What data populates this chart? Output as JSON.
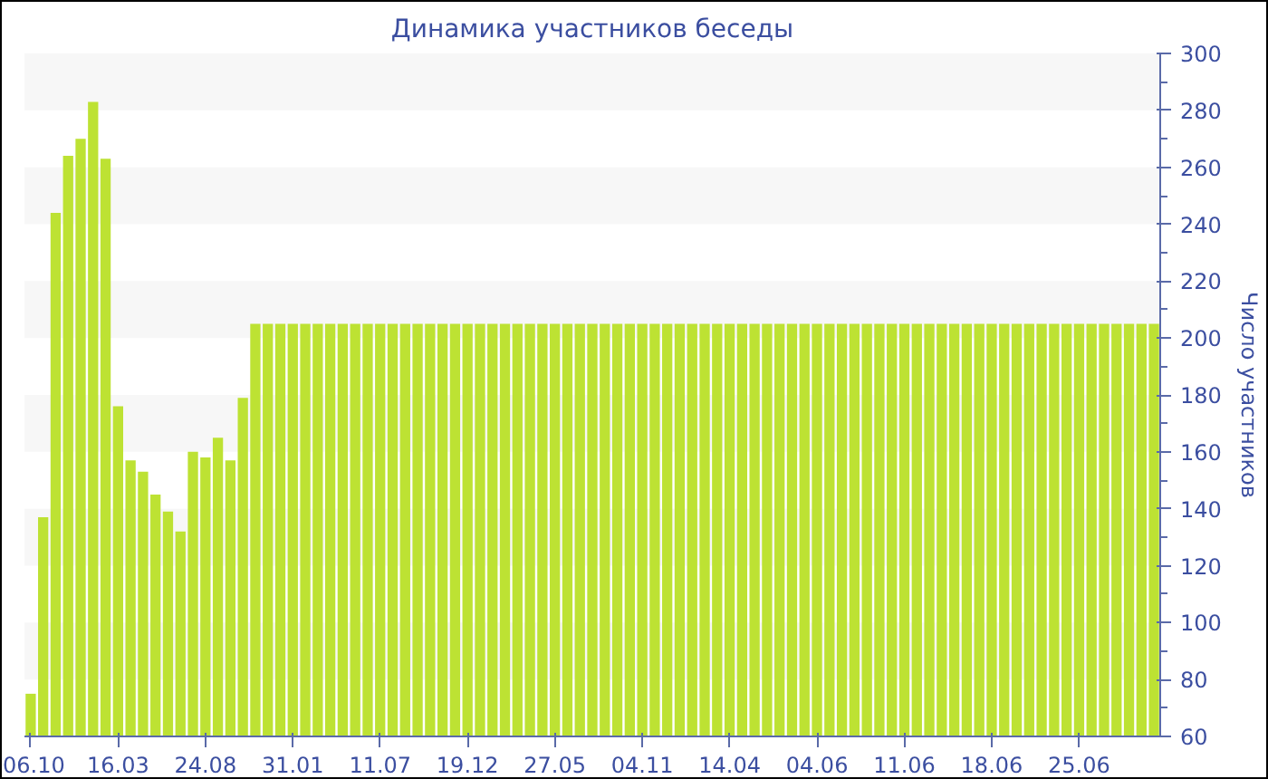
{
  "chart_data": {
    "type": "bar",
    "title": "Динамика участников беседы",
    "ylabel": "Число участников",
    "categories": [
      "06.10",
      null,
      null,
      null,
      null,
      null,
      null,
      "16.03",
      null,
      null,
      null,
      null,
      null,
      null,
      "24.08",
      null,
      null,
      null,
      null,
      null,
      null,
      "31.01",
      null,
      null,
      null,
      null,
      null,
      null,
      "11.07",
      null,
      null,
      null,
      null,
      null,
      null,
      "19.12",
      null,
      null,
      null,
      null,
      null,
      null,
      "27.05",
      null,
      null,
      null,
      null,
      null,
      null,
      "04.11",
      null,
      null,
      null,
      null,
      null,
      null,
      "14.04",
      null,
      null,
      null,
      null,
      null,
      null,
      "04.06",
      null,
      null,
      null,
      null,
      null,
      null,
      "11.06",
      null,
      null,
      null,
      null,
      null,
      null,
      "18.06",
      null,
      null,
      null,
      null,
      null,
      null,
      "25.06",
      null,
      null,
      null,
      null,
      null,
      null
    ],
    "values": [
      75,
      137,
      244,
      264,
      270,
      283,
      263,
      176,
      157,
      153,
      145,
      139,
      132,
      160,
      158,
      165,
      157,
      179,
      205,
      205,
      205,
      205,
      205,
      205,
      205,
      205,
      205,
      205,
      205,
      205,
      205,
      205,
      205,
      205,
      205,
      205,
      205,
      205,
      205,
      205,
      205,
      205,
      205,
      205,
      205,
      205,
      205,
      205,
      205,
      205,
      205,
      205,
      205,
      205,
      205,
      205,
      205,
      205,
      205,
      205,
      205,
      205,
      205,
      205,
      205,
      205,
      205,
      205,
      205,
      205,
      205,
      205,
      205,
      205,
      205,
      205,
      205,
      205,
      205,
      205,
      205,
      205,
      205,
      205,
      205,
      205,
      205,
      205,
      205,
      205,
      205
    ],
    "color": "#bde233",
    "ylim": [
      60,
      300
    ],
    "yticks": [
      60,
      80,
      100,
      120,
      140,
      160,
      180,
      200,
      220,
      240,
      260,
      280,
      300
    ],
    "bands": [
      {
        "axis": "y",
        "from": 80,
        "to": 100,
        "color": "#f7f7f7"
      },
      {
        "axis": "y",
        "from": 120,
        "to": 140,
        "color": "#f7f7f7"
      },
      {
        "axis": "y",
        "from": 160,
        "to": 180,
        "color": "#f7f7f7"
      },
      {
        "axis": "y",
        "from": 200,
        "to": 220,
        "color": "#f7f7f7"
      },
      {
        "axis": "y",
        "from": 240,
        "to": 260,
        "color": "#f7f7f7"
      },
      {
        "axis": "y",
        "from": 280,
        "to": 300,
        "color": "#f7f7f7"
      }
    ]
  }
}
